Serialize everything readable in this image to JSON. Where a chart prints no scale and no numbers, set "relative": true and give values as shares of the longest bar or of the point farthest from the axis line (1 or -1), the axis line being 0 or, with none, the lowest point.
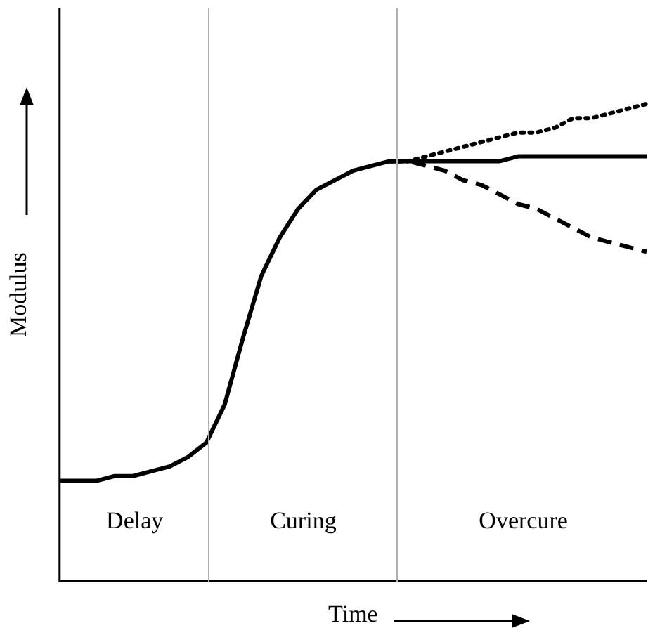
{
  "chart_data": {
    "type": "line",
    "relative": true,
    "xlabel": "Time",
    "ylabel": "Modulus",
    "legend": false,
    "marker": "none",
    "categories": [
      null,
      null,
      null,
      null,
      null,
      null,
      null,
      null,
      null,
      null,
      null,
      null,
      null,
      null,
      null,
      null,
      null,
      null,
      null,
      null,
      null,
      null,
      null,
      null,
      null,
      null,
      null,
      null,
      null,
      null,
      null,
      null,
      null
    ],
    "series": [
      {
        "color": "#000000",
        "line_style": "solid",
        "values": [
          0.21,
          0.21,
          0.21,
          0.22,
          0.22,
          0.23,
          0.24,
          0.26,
          0.29,
          0.37,
          0.51,
          0.64,
          0.72,
          0.78,
          0.82,
          0.84,
          0.86,
          0.87,
          0.88,
          0.88,
          0.88,
          0.88,
          0.88,
          0.88,
          0.88,
          0.89,
          0.89,
          0.89,
          0.89,
          0.89,
          0.89,
          0.89,
          0.89
        ]
      },
      {
        "color": "#000000",
        "line_style": "dotted",
        "values": [
          null,
          null,
          null,
          null,
          null,
          null,
          null,
          null,
          null,
          null,
          null,
          null,
          null,
          null,
          null,
          null,
          null,
          null,
          0.88,
          0.88,
          0.89,
          0.9,
          0.91,
          0.92,
          0.93,
          0.94,
          0.94,
          0.95,
          0.97,
          0.97,
          0.98,
          0.99,
          1.0
        ]
      },
      {
        "color": "#000000",
        "line_style": "dashed",
        "values": [
          null,
          null,
          null,
          null,
          null,
          null,
          null,
          null,
          null,
          null,
          null,
          null,
          null,
          null,
          null,
          null,
          null,
          null,
          0.88,
          0.88,
          0.87,
          0.86,
          0.84,
          0.83,
          0.81,
          0.79,
          0.78,
          0.76,
          0.74,
          0.72,
          0.71,
          0.7,
          0.69
        ]
      }
    ],
    "annotations": [
      "Delay",
      "Curing",
      "Overcure"
    ]
  }
}
